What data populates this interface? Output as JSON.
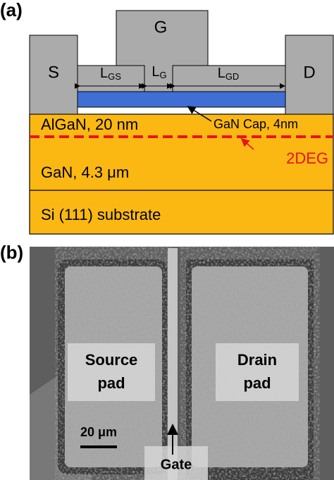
{
  "panel_a": {
    "label": "(a)",
    "gate": "G",
    "source": "S",
    "drain": "D",
    "lengths": [
      {
        "main": "L",
        "sub": "GS"
      },
      {
        "main": "L",
        "sub": "G"
      },
      {
        "main": "L",
        "sub": "GD"
      }
    ],
    "layers": {
      "barrier": "AlGaN, 20 nm",
      "cap": "GaN Cap, 4nm",
      "channel": "2DEG",
      "buffer": "GaN, 4.3 μm",
      "substrate": "Si (111) substrate"
    }
  },
  "panel_b": {
    "label": "(b)",
    "source_pad": [
      "Source",
      "pad"
    ],
    "drain_pad": [
      "Drain",
      "pad"
    ],
    "scale": "20 μm",
    "gate": "Gate"
  }
}
